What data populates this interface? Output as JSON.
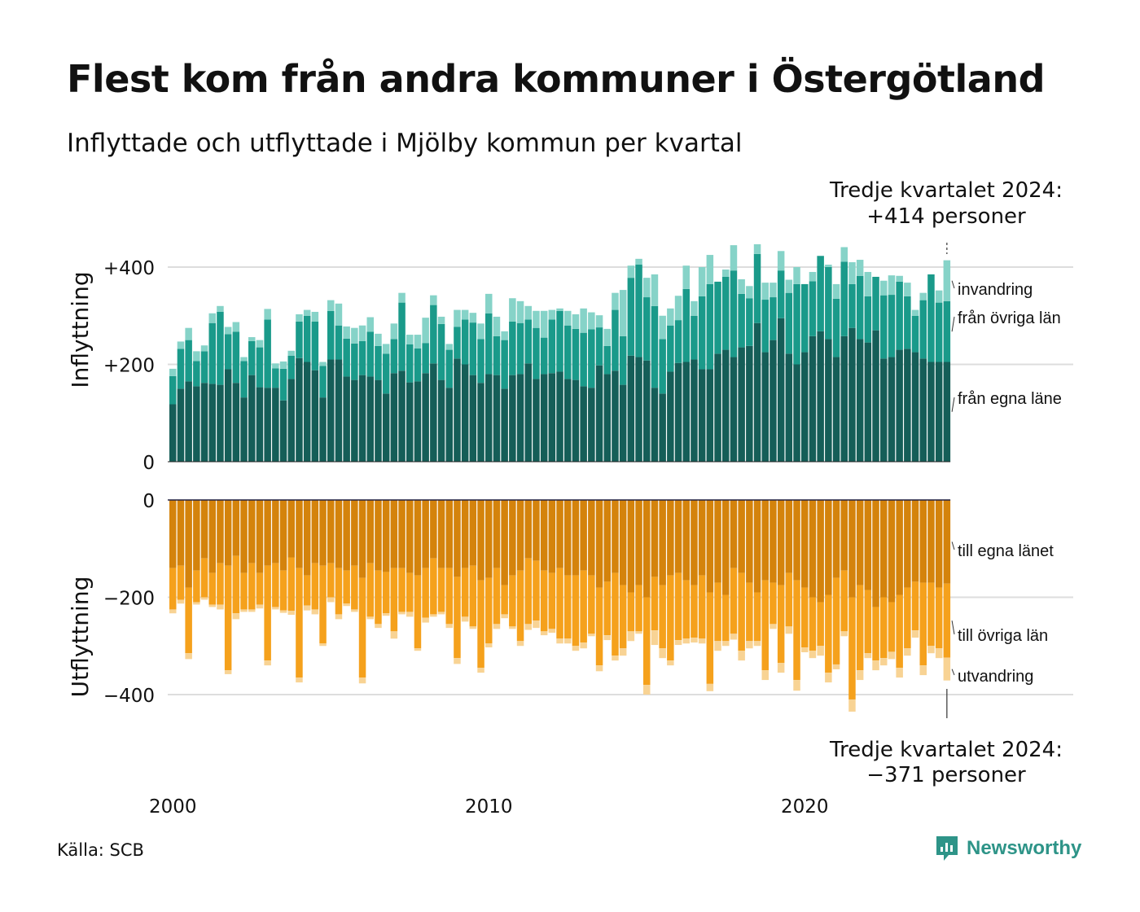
{
  "title": "Flest kom från andra kommuner i Östergötland",
  "subtitle": "Inflyttade och utflyttade i Mjölby kommun per kvartal",
  "source": "Källa: SCB",
  "brand": {
    "name": "Newsworthy",
    "icon": "newsworthy-logo-icon",
    "color": "#2e9488"
  },
  "colors": {
    "in_own": "#155e58",
    "in_other": "#1a9a8a",
    "in_immigration": "#86d3c8",
    "out_own": "#d4830c",
    "out_other": "#f5a11c",
    "out_emigration": "#f8d394",
    "grid": "#dddddd",
    "text": "#111111"
  },
  "chart_data": {
    "type": "bar",
    "x": [
      "2000Q1",
      "2000Q2",
      "2000Q3",
      "2000Q4",
      "2001Q1",
      "2001Q2",
      "2001Q3",
      "2001Q4",
      "2002Q1",
      "2002Q2",
      "2002Q3",
      "2002Q4",
      "2003Q1",
      "2003Q2",
      "2003Q3",
      "2003Q4",
      "2004Q1",
      "2004Q2",
      "2004Q3",
      "2004Q4",
      "2005Q1",
      "2005Q2",
      "2005Q3",
      "2005Q4",
      "2006Q1",
      "2006Q2",
      "2006Q3",
      "2006Q4",
      "2007Q1",
      "2007Q2",
      "2007Q3",
      "2007Q4",
      "2008Q1",
      "2008Q2",
      "2008Q3",
      "2008Q4",
      "2009Q1",
      "2009Q2",
      "2009Q3",
      "2009Q4",
      "2010Q1",
      "2010Q2",
      "2010Q3",
      "2010Q4",
      "2011Q1",
      "2011Q2",
      "2011Q3",
      "2011Q4",
      "2012Q1",
      "2012Q2",
      "2012Q3",
      "2012Q4",
      "2013Q1",
      "2013Q2",
      "2013Q3",
      "2013Q4",
      "2014Q1",
      "2014Q2",
      "2014Q3",
      "2014Q4",
      "2015Q1",
      "2015Q2",
      "2015Q3",
      "2015Q4",
      "2016Q1",
      "2016Q2",
      "2016Q3",
      "2016Q4",
      "2017Q1",
      "2017Q2",
      "2017Q3",
      "2017Q4",
      "2018Q1",
      "2018Q2",
      "2018Q3",
      "2018Q4",
      "2019Q1",
      "2019Q2",
      "2019Q3",
      "2019Q4",
      "2020Q1",
      "2020Q2",
      "2020Q3",
      "2020Q4",
      "2021Q1",
      "2021Q2",
      "2021Q3",
      "2021Q4",
      "2022Q1",
      "2022Q2",
      "2022Q3",
      "2022Q4",
      "2023Q1",
      "2023Q2",
      "2023Q3",
      "2023Q4",
      "2024Q1",
      "2024Q2",
      "2024Q3"
    ],
    "x_ticks": [
      "2000",
      "2010",
      "2020"
    ],
    "panels": [
      {
        "name": "inflyttning",
        "ylabel": "Inflyttning",
        "ylim": [
          0,
          450
        ],
        "ticks": [
          0,
          200,
          400
        ],
        "tick_labels": [
          "0",
          "+200",
          "+400"
        ],
        "series": [
          {
            "name": "från egna läne",
            "color": "#155e58",
            "values": [
              118,
              150,
              165,
              155,
              162,
              160,
              158,
              190,
              162,
              132,
              178,
              153,
              152,
              152,
              126,
              170,
              213,
              205,
              188,
              132,
              210,
              210,
              175,
              168,
              178,
              175,
              168,
              140,
              182,
              187,
              163,
              165,
              182,
              202,
              168,
              152,
              212,
              200,
              178,
              162,
              180,
              178,
              150,
              178,
              180,
              202,
              170,
              180,
              182,
              185,
              170,
              168,
              155,
              152,
              198,
              180,
              187,
              158,
              218,
              215,
              208,
              152,
              140,
              185,
              203,
              205,
              210,
              190,
              190,
              222,
              230,
              215,
              235,
              238,
              285,
              225,
              250,
              295,
              222,
              200,
              225,
              258,
              268,
              252,
              215,
              258,
              275,
              252,
              245,
              270,
              212,
              215,
              230,
              232,
              225,
              212,
              205,
              205,
              205
            ]
          },
          {
            "name": "från övriga län",
            "color": "#1a9a8a",
            "values": [
              58,
              82,
              85,
              52,
              65,
              125,
              150,
              72,
              105,
              75,
              70,
              82,
              140,
              40,
              65,
              48,
              75,
              95,
              100,
              65,
              100,
              70,
              78,
              75,
              70,
              92,
              70,
              82,
              70,
              140,
              78,
              68,
              62,
              120,
              115,
              78,
              65,
              92,
              108,
              90,
              125,
              80,
              100,
              110,
              105,
              90,
              105,
              75,
              110,
              125,
              110,
              105,
              110,
              120,
              78,
              58,
              125,
              100,
              160,
              190,
              130,
              168,
              112,
              95,
              88,
              150,
              90,
              150,
              175,
              148,
              150,
              178,
              110,
              98,
              142,
              108,
              88,
              98,
              125,
              165,
              140,
              113,
              155,
              148,
              120,
              153,
              90,
              130,
              95,
              110,
              130,
              128,
              140,
              108,
              75,
              120,
              180,
              122,
              125
            ]
          },
          {
            "name": "invandring",
            "color": "#86d3c8",
            "values": [
              15,
              15,
              25,
              20,
              12,
              20,
              12,
              15,
              20,
              8,
              8,
              15,
              22,
              10,
              15,
              10,
              15,
              12,
              20,
              8,
              22,
              45,
              25,
              32,
              32,
              30,
              25,
              20,
              32,
              20,
              20,
              28,
              52,
              20,
              15,
              12,
              35,
              20,
              20,
              32,
              40,
              40,
              18,
              48,
              45,
              28,
              35,
              55,
              20,
              5,
              30,
              30,
              50,
              35,
              25,
              35,
              35,
              95,
              25,
              12,
              40,
              65,
              48,
              35,
              50,
              48,
              30,
              60,
              60,
              0,
              15,
              52,
              30,
              25,
              20,
              35,
              30,
              40,
              27,
              35,
              0,
              19,
              0,
              5,
              30,
              30,
              45,
              33,
              50,
              0,
              30,
              40,
              12,
              28,
              12,
              15,
              0,
              25,
              84
            ]
          }
        ]
      },
      {
        "name": "utflyttning",
        "ylabel": "Utflyttning",
        "ylim": [
          -450,
          0
        ],
        "ticks": [
          0,
          -200,
          -400
        ],
        "tick_labels": [
          "0",
          "−200",
          "−400"
        ],
        "series": [
          {
            "name": "till egna länet",
            "color": "#d4830c",
            "values": [
              -140,
              -135,
              -180,
              -145,
              -120,
              -150,
              -130,
              -135,
              -115,
              -150,
              -130,
              -150,
              -135,
              -130,
              -145,
              -118,
              -140,
              -155,
              -130,
              -135,
              -130,
              -140,
              -145,
              -135,
              -160,
              -130,
              -145,
              -148,
              -140,
              -140,
              -150,
              -155,
              -140,
              -120,
              -140,
              -140,
              -158,
              -140,
              -135,
              -165,
              -160,
              -140,
              -175,
              -155,
              -145,
              -120,
              -125,
              -145,
              -150,
              -140,
              -155,
              -155,
              -145,
              -155,
              -180,
              -168,
              -150,
              -175,
              -190,
              -175,
              -200,
              -158,
              -175,
              -155,
              -150,
              -165,
              -175,
              -155,
              -190,
              -170,
              -195,
              -140,
              -150,
              -170,
              -190,
              -165,
              -170,
              -175,
              -150,
              -165,
              -180,
              -200,
              -210,
              -195,
              -160,
              -145,
              -200,
              -175,
              -185,
              -220,
              -200,
              -210,
              -195,
              -180,
              -168,
              -170,
              -170,
              -180,
              -172
            ]
          },
          {
            "name": "till övriga län",
            "color": "#f5a11c",
            "values": [
              -85,
              -70,
              -135,
              -65,
              -80,
              -65,
              -85,
              -215,
              -118,
              -75,
              -95,
              -65,
              -195,
              -90,
              -82,
              -110,
              -225,
              -62,
              -95,
              -160,
              -70,
              -95,
              -68,
              -90,
              -205,
              -110,
              -110,
              -85,
              -130,
              -90,
              -80,
              -150,
              -102,
              -115,
              -90,
              -115,
              -167,
              -100,
              -125,
              -180,
              -135,
              -115,
              -60,
              -105,
              -145,
              -135,
              -123,
              -125,
              -115,
              -145,
              -130,
              -145,
              -148,
              -120,
              -160,
              -110,
              -170,
              -130,
              -80,
              -95,
              -180,
              -110,
              -130,
              -175,
              -138,
              -120,
              -108,
              -130,
              -188,
              -120,
              -95,
              -135,
              -160,
              -120,
              -100,
              -185,
              -85,
              -160,
              -110,
              -205,
              -123,
              -110,
              -90,
              -160,
              -178,
              -125,
              -210,
              -175,
              -130,
              -110,
              -125,
              -102,
              -150,
              -125,
              -100,
              -170,
              -130,
              -125,
              -152
            ]
          },
          {
            "name": "utvandring",
            "color": "#f8d394",
            "values": [
              -8,
              -8,
              -12,
              -5,
              -5,
              -5,
              -10,
              -8,
              -12,
              -5,
              -5,
              -8,
              -10,
              -5,
              -5,
              -8,
              -10,
              -10,
              -10,
              -5,
              -10,
              -10,
              -5,
              -5,
              -12,
              -5,
              -8,
              -5,
              -15,
              -5,
              -10,
              -5,
              -10,
              -5,
              -5,
              -8,
              -12,
              -10,
              -5,
              -10,
              -8,
              -10,
              -8,
              -5,
              -10,
              -12,
              -15,
              -8,
              -8,
              -10,
              -10,
              -10,
              -12,
              -5,
              -12,
              -10,
              -10,
              -15,
              -20,
              -5,
              -20,
              -30,
              -20,
              -10,
              -10,
              -10,
              -10,
              -10,
              -15,
              -20,
              -10,
              -12,
              -20,
              -15,
              -10,
              -20,
              -10,
              -20,
              -15,
              -22,
              -10,
              -15,
              -20,
              -20,
              -10,
              -10,
              -25,
              -20,
              -10,
              -20,
              -15,
              -15,
              -20,
              -15,
              -15,
              -20,
              -15,
              -20,
              -47
            ]
          }
        ]
      }
    ],
    "annotations": {
      "top": {
        "line1": "Tredje kvartalet 2024:",
        "line2": "+414 personer"
      },
      "bottom": {
        "line1": "Tredje kvartalet 2024:",
        "line2": "−371 personer"
      }
    },
    "legend_placement": "right-of-last-bar",
    "grid": true
  }
}
